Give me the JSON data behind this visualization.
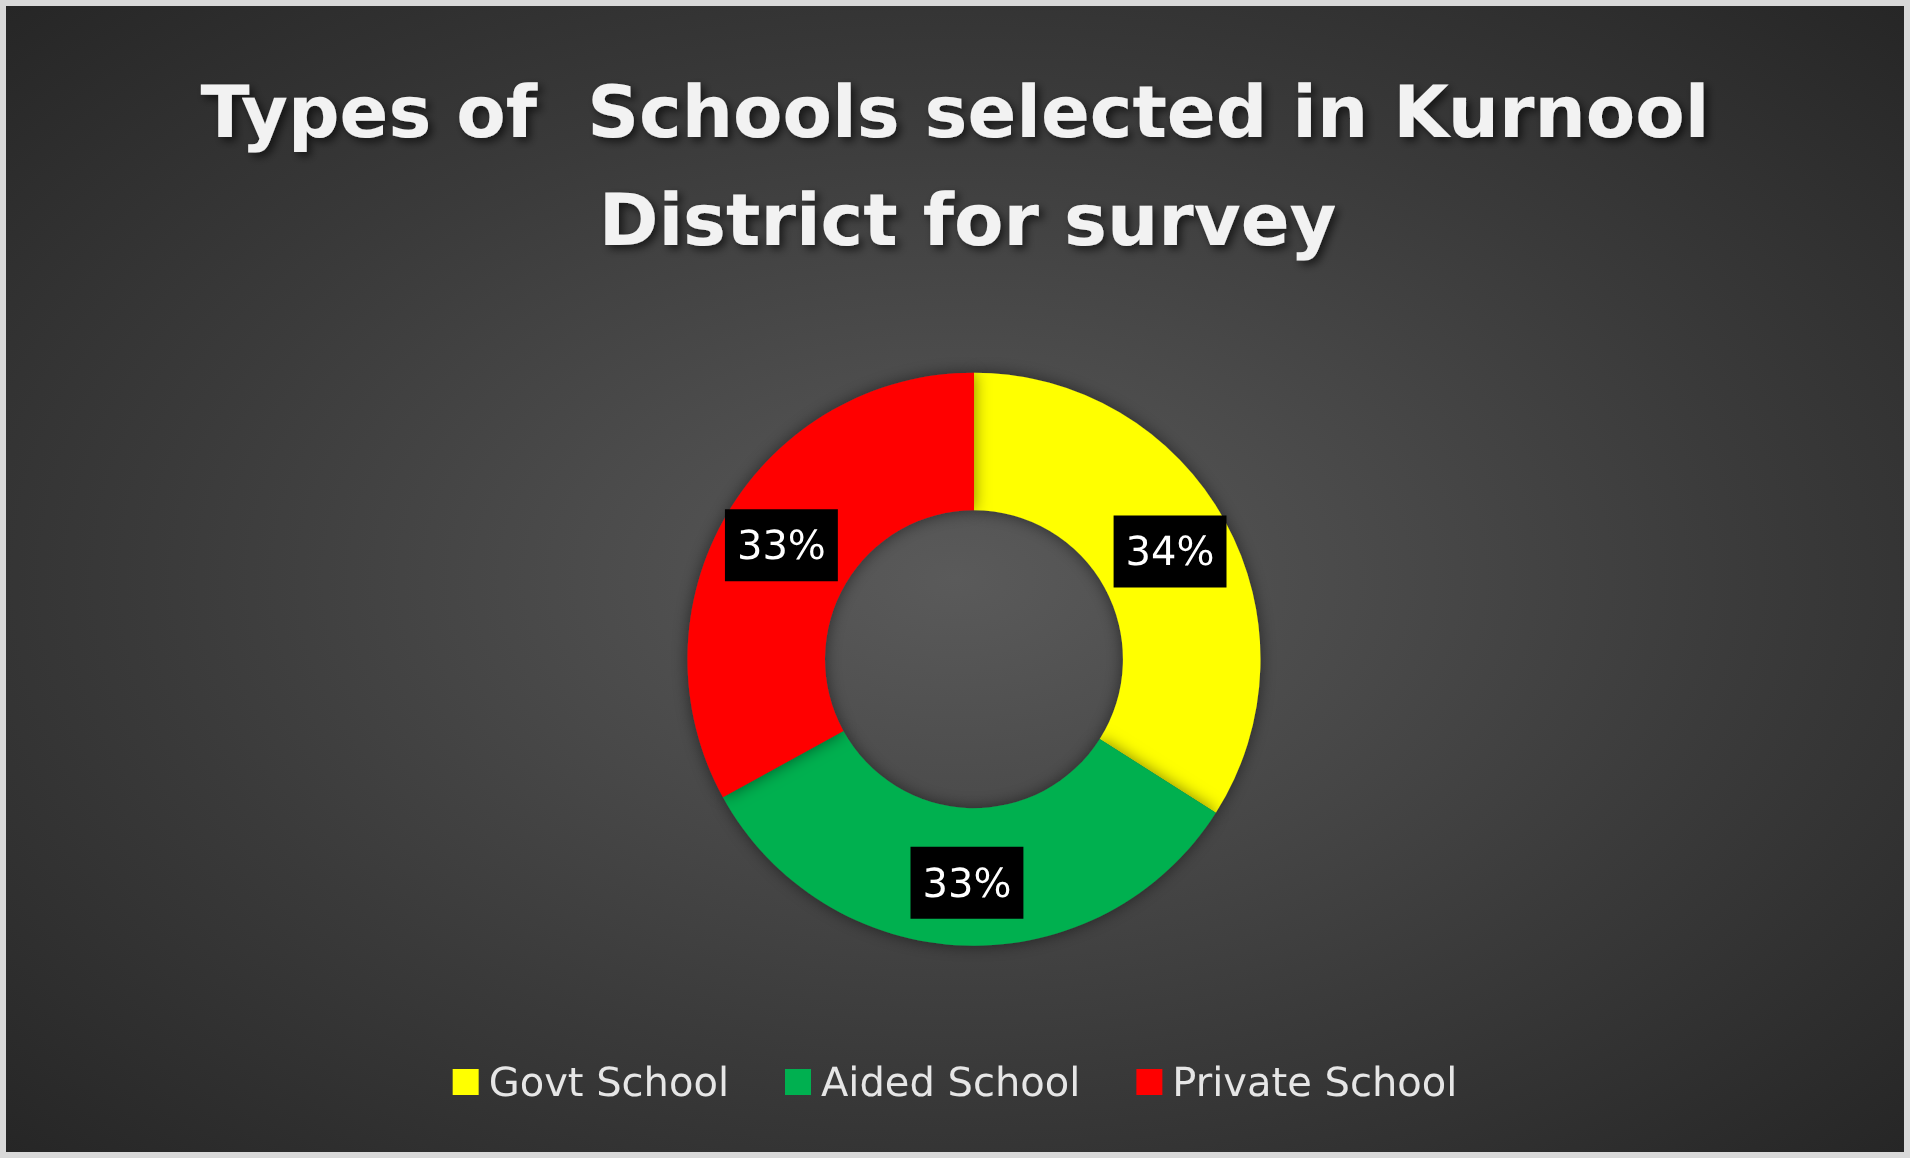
{
  "chart_data": {
    "type": "donut",
    "title": "Types of  Schools selected in Kurnool District for survey",
    "categories": [
      "Govt School",
      "Aided School",
      "Private School"
    ],
    "values": [
      34,
      33,
      33
    ],
    "colors": [
      "#ffff00",
      "#00b050",
      "#ff0000"
    ],
    "value_labels": [
      "34%",
      "33%",
      "33%"
    ],
    "legend": "bottom"
  }
}
